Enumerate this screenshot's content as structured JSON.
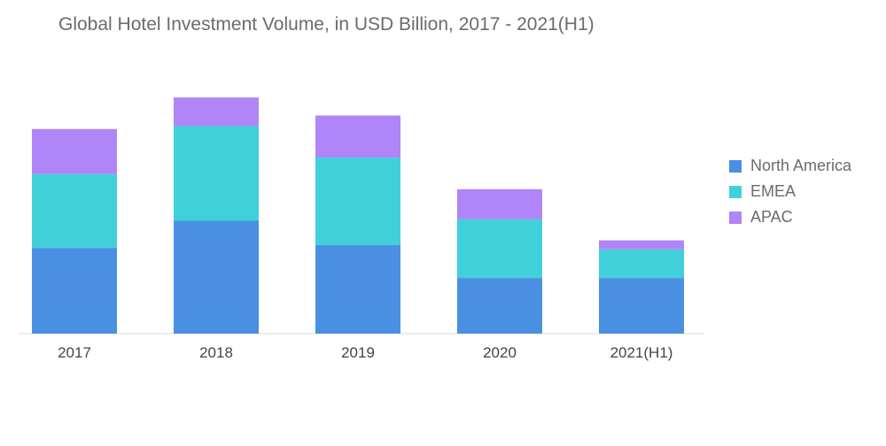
{
  "chart_data": {
    "type": "bar",
    "stacked": true,
    "title": "Global Hotel Investment Volume, in USD Billion, 2017 - 2021(H1)",
    "categories": [
      "2017",
      "2018",
      "2019",
      "2020",
      "2021(H1)"
    ],
    "series": [
      {
        "name": "North America",
        "color": "#4a90e2",
        "values": [
          28.5,
          37.5,
          29.5,
          18.5,
          18.5
        ]
      },
      {
        "name": "EMEA",
        "color": "#40d0da",
        "values": [
          24.5,
          31.5,
          29,
          19.5,
          9.5
        ]
      },
      {
        "name": "APAC",
        "color": "#b085f8",
        "values": [
          15,
          9.5,
          14,
          10,
          3
        ]
      }
    ],
    "ylim": [
      0,
      80
    ],
    "grid": false,
    "legend_position": "right"
  }
}
